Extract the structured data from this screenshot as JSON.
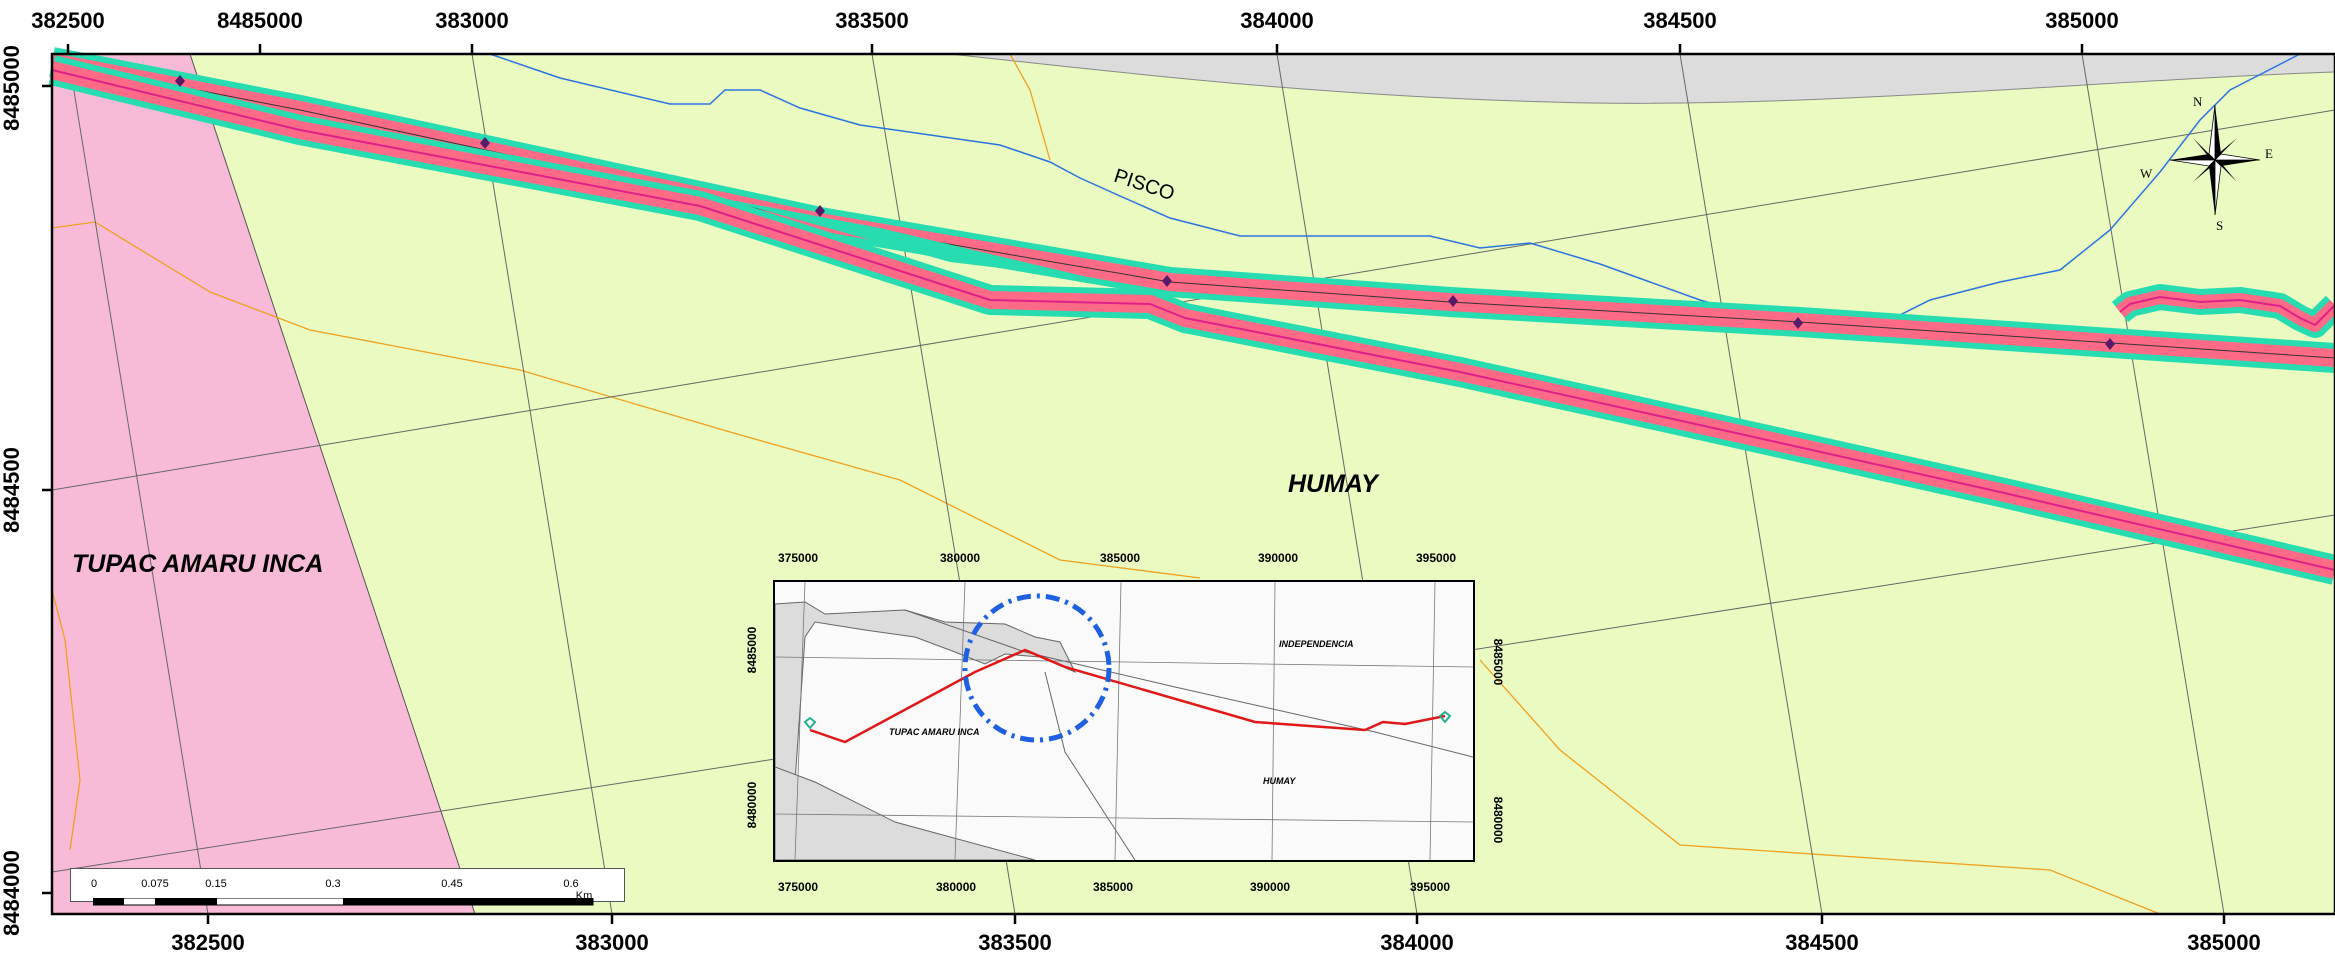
{
  "map": {
    "x_ticks_top": [
      "382500",
      "8485000",
      "383000",
      "383500",
      "384000",
      "384500",
      "385000"
    ],
    "x_ticks_bottom": [
      "382500",
      "383000",
      "383500",
      "384000",
      "384500",
      "385000"
    ],
    "y_ticks_left": [
      "8485000",
      "8484500",
      "8484000"
    ],
    "regions": {
      "tupac": "TUPAC AMARU INCA",
      "humay": "HUMAY"
    },
    "river_label": "PISCO",
    "compass": {
      "n": "N",
      "s": "S",
      "e": "E",
      "w": "W"
    },
    "colors": {
      "farmland": "#eafac0",
      "tupac_zone": "#f7bbd8",
      "river_bed": "#dcdcdc",
      "buffer_outer": "#26dcb0",
      "buffer_inner": "#ff6b86",
      "river": "#2a74e0",
      "road": "#f0a020",
      "pipeline": "#e0208a"
    }
  },
  "inset": {
    "x_ticks": [
      "375000",
      "380000",
      "385000",
      "390000",
      "395000"
    ],
    "y_ticks": [
      "8485000",
      "8480000"
    ],
    "labels": {
      "tupac": "TUPAC AMARU INCA",
      "independencia": "INDEPENDENCIA",
      "humay": "HUMAY"
    }
  },
  "scale_bar": {
    "ticks": [
      "0",
      "0.075",
      "0.15",
      "0.3",
      "0.45",
      "0.6"
    ],
    "unit": "Km"
  }
}
